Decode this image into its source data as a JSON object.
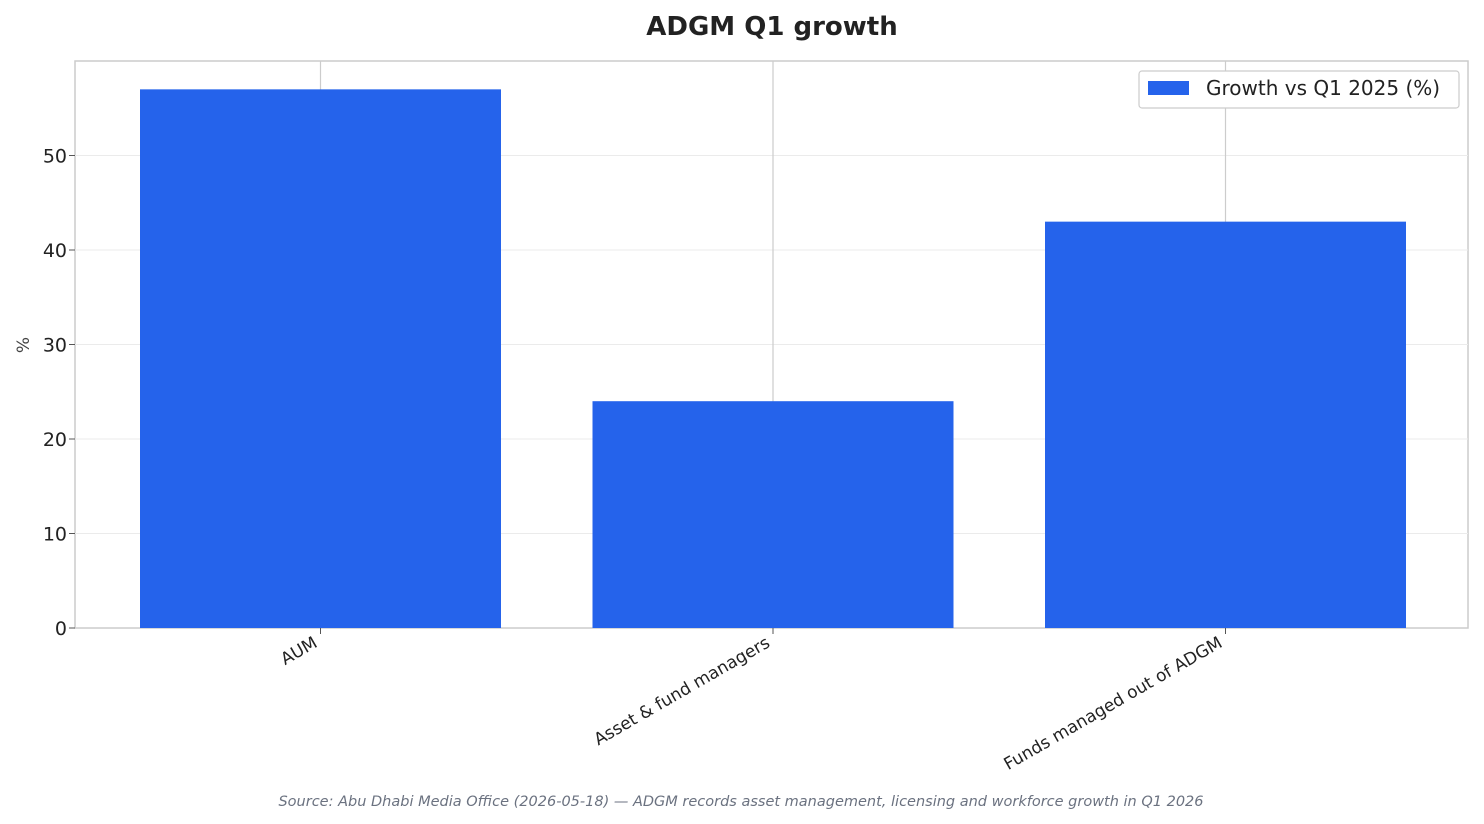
{
  "chart_data": {
    "type": "bar",
    "title": "ADGM Q1 growth",
    "xlabel": "",
    "ylabel": "%",
    "categories": [
      "AUM",
      "Asset & fund managers",
      "Funds managed out of ADGM"
    ],
    "series": [
      {
        "name": "Growth vs Q1 2025 (%)",
        "values": [
          57,
          24,
          43
        ]
      }
    ],
    "ylim": [
      0,
      60
    ],
    "yticks": [
      0,
      10,
      20,
      30,
      40,
      50
    ],
    "ytick_labels": [
      "0",
      "10",
      "20",
      "30",
      "40",
      "50"
    ],
    "grid": "y",
    "legend_position": "top-right",
    "colors": {
      "bar": "#2563eb"
    }
  },
  "source": "Source: Abu Dhabi Media Office (2026-05-18) — ADGM records asset management, licensing and workforce growth in Q1 2026"
}
